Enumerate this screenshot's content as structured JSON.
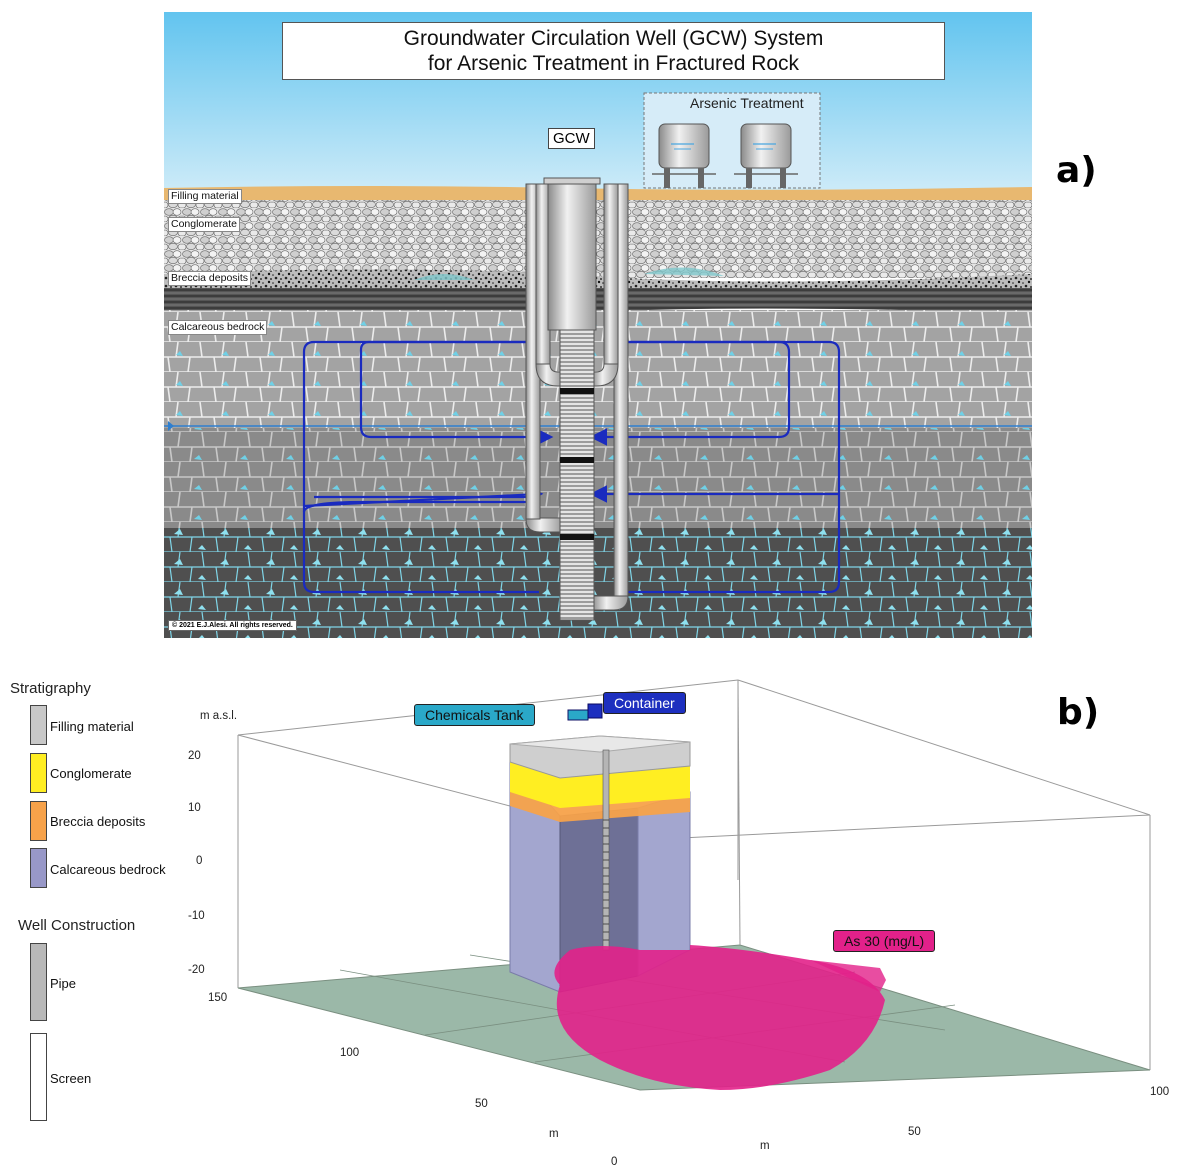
{
  "panel_a": {
    "title_line1": "Groundwater Circulation Well (GCW) System",
    "title_line2": "for Arsenic Treatment in Fractured Rock",
    "treatment_label": "Arsenic Treatment",
    "gcw_label": "GCW",
    "layers": [
      "Filling material",
      "Conglomerate",
      "Breccia deposits",
      "Calcareous bedrock"
    ],
    "copyright": "© 2021  E.J.Alesi.  All rights reserved.",
    "letter": "a)"
  },
  "panel_b": {
    "letter": "b)",
    "stratigraphy_heading": "Stratigraphy",
    "stratigraphy": [
      {
        "label": "Filling material",
        "color": "#c8c8c8"
      },
      {
        "label": "Conglomerate",
        "color": "#ffee22"
      },
      {
        "label": "Breccia deposits",
        "color": "#f7a24a"
      },
      {
        "label": "Calcareous bedrock",
        "color": "#9898c8"
      }
    ],
    "well_heading": "Well Construction",
    "well": [
      {
        "label": "Pipe",
        "color": "#b8b8b8"
      },
      {
        "label": "Screen",
        "color": "#ffffff"
      }
    ],
    "z_axis_label": "m a.s.l.",
    "z_ticks": [
      "20",
      "10",
      "0",
      "-10",
      "-20"
    ],
    "y_ticks": [
      "150",
      "100",
      "50",
      "0"
    ],
    "y_axis_label": "m",
    "x_ticks": [
      "50",
      "100"
    ],
    "x_axis_label": "m",
    "chemicals_tank": "Chemicals Tank",
    "container": "Container",
    "plume_label": "As 30 (mg/L)"
  }
}
